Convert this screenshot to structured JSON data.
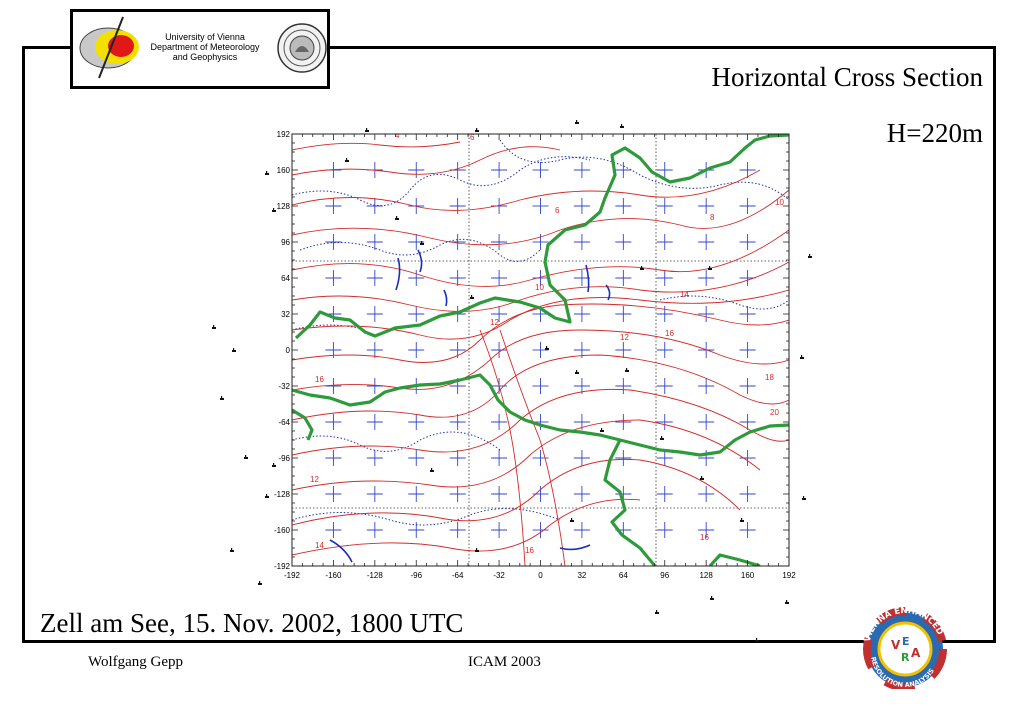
{
  "header": {
    "institution": [
      "University of Vienna",
      "Department of Meteorology",
      "and Geophysics"
    ],
    "logo_icon": "meteorology-dept-logo",
    "seal_icon": "university-seal"
  },
  "title": "Horizontal Cross Section",
  "height_label": "H=220m",
  "caption": "Zell am See, 15. Nov. 2002, 1800 UTC",
  "footer": {
    "author": "Wolfgang Gepp",
    "conference": "ICAM 2003"
  },
  "map": {
    "x_ticks": [
      "-192",
      "-160",
      "-128",
      "-96",
      "-64",
      "-32",
      "0",
      "32",
      "64",
      "96",
      "128",
      "160",
      "192"
    ],
    "y_ticks": [
      "192",
      "160",
      "128",
      "96",
      "64",
      "32",
      "0",
      "-32",
      "-64",
      "-96",
      "-128",
      "-160",
      "-192"
    ],
    "contour_labels": [
      "4",
      "6",
      "6",
      "8",
      "10",
      "12",
      "10",
      "12",
      "14",
      "16",
      "18",
      "20",
      "16",
      "12",
      "14",
      "16",
      "16"
    ],
    "colors": {
      "contours": "#d42a2a",
      "border": "#2e9a3c",
      "lakes": "#1a2fb8",
      "dotted": "#2233aa",
      "grid_cross": "#3344cc"
    }
  },
  "vera_logo": {
    "top_text": "VIENNA ENHANCED",
    "bottom_text": "RESOLUTION ANALYSIS",
    "letters": [
      "V",
      "E",
      "R",
      "A"
    ]
  }
}
